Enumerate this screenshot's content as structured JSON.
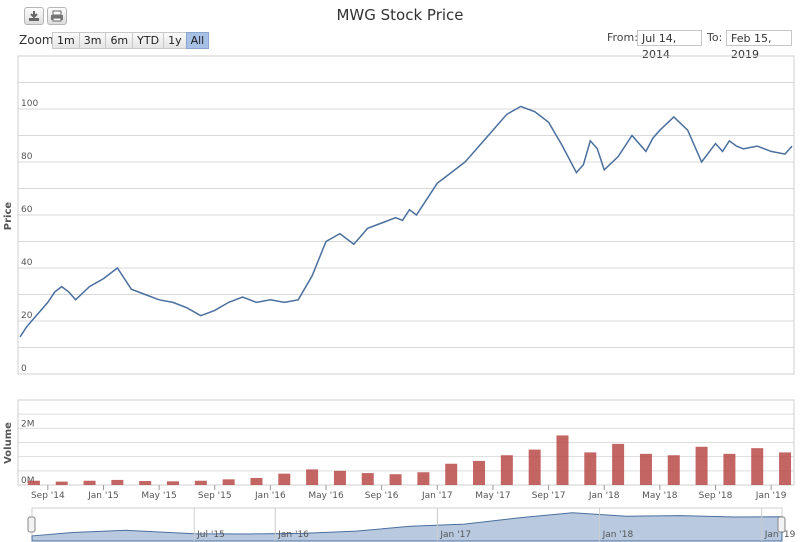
{
  "toolbar": {
    "download_icon": "download-icon",
    "print_icon": "print-icon"
  },
  "range_selector": {
    "zoom_label": "Zoom",
    "buttons": [
      "1m",
      "3m",
      "6m",
      "YTD",
      "1y",
      "All"
    ],
    "active": "All",
    "from_label": "From:",
    "from_value": "Jul 14, 2014",
    "to_label": "To:",
    "to_value": "Feb 15, 2019"
  },
  "colors": {
    "price_line": "#4a6f9e",
    "volume_bar": "#b94a48",
    "navigator_fill": "#b8c9e0",
    "active_button": "#a7c1e6"
  },
  "chart_data": [
    {
      "type": "line",
      "title": "MWG Stock Price",
      "ylabel": "Price",
      "xlabel": "",
      "ylim": [
        0,
        120
      ],
      "y_ticks": [
        "0",
        "20",
        "40",
        "60",
        "80",
        "100"
      ],
      "x_ticks": [
        "Sep '14",
        "Jan '15",
        "May '15",
        "Sep '15",
        "Jan '16",
        "May '16",
        "Sep '16",
        "Jan '17",
        "May '17",
        "Sep '17",
        "Jan '18",
        "May '18",
        "Sep '18",
        "Jan '19"
      ],
      "x_unit": "months since Jul 2014",
      "xlim": [
        0,
        55.5
      ],
      "series": [
        {
          "name": "MWG",
          "x": [
            0,
            0.5,
            1,
            1.5,
            2,
            2.5,
            3,
            3.5,
            4,
            5,
            6,
            7,
            8,
            9,
            10,
            11,
            12,
            13,
            14,
            15,
            16,
            17,
            18,
            19,
            20,
            21,
            22,
            23,
            24,
            25,
            26,
            27,
            27.5,
            28,
            28.5,
            29,
            30,
            31,
            32,
            33,
            34,
            35,
            36,
            37,
            38,
            39,
            40,
            40.5,
            41,
            41.5,
            42,
            43,
            44,
            45,
            45.5,
            46,
            47,
            48,
            49,
            50,
            50.5,
            51,
            51.5,
            52,
            53,
            54,
            55,
            55.5
          ],
          "values": [
            14,
            18,
            21,
            24,
            27,
            31,
            33,
            31,
            28,
            33,
            36,
            40,
            32,
            30,
            28,
            27,
            25,
            22,
            24,
            27,
            29,
            27,
            28,
            27,
            28,
            37,
            50,
            53,
            49,
            55,
            57,
            59,
            58,
            62,
            60,
            64,
            72,
            76,
            80,
            86,
            92,
            98,
            101,
            99,
            95,
            86,
            76,
            79,
            88,
            85,
            77,
            82,
            90,
            84,
            89,
            92,
            97,
            92,
            80,
            87,
            84,
            88,
            86,
            85,
            86,
            84,
            83,
            86
          ]
        }
      ]
    },
    {
      "type": "bar",
      "title": "",
      "ylabel": "Volume",
      "xlabel": "",
      "ylim": [
        0,
        3000000
      ],
      "y_ticks": [
        "0M",
        "2M"
      ],
      "x_ticks": [
        "Sep '14",
        "Jan '15",
        "May '15",
        "Sep '15",
        "Jan '16",
        "May '16",
        "Sep '16",
        "Jan '17",
        "May '17",
        "Sep '17",
        "Jan '18",
        "May '18",
        "Sep '18",
        "Jan '19"
      ],
      "x_unit": "months since Jul 2014",
      "xlim": [
        0,
        55.5
      ],
      "series": [
        {
          "name": "Volume",
          "x": [
            1,
            3,
            5,
            7,
            9,
            11,
            13,
            15,
            17,
            19,
            21,
            23,
            25,
            27,
            29,
            31,
            33,
            35,
            37,
            39,
            41,
            43,
            45,
            47,
            49,
            51,
            53,
            55
          ],
          "values": [
            150000,
            120000,
            150000,
            180000,
            140000,
            130000,
            150000,
            200000,
            250000,
            400000,
            550000,
            500000,
            420000,
            380000,
            450000,
            750000,
            850000,
            1050000,
            1250000,
            1750000,
            1150000,
            1450000,
            1100000,
            1050000,
            1350000,
            1100000,
            1300000,
            1150000
          ]
        }
      ]
    },
    {
      "type": "area",
      "title": "",
      "ylabel": "",
      "xlabel": "",
      "ylim": [
        0,
        110
      ],
      "x_ticks": [
        "Jul '15",
        "Jan '16",
        "Jan '17",
        "Jan '18",
        "Jan '19"
      ],
      "x_unit": "months since Jul 2014",
      "xlim": [
        0,
        55.5
      ],
      "series": [
        {
          "name": "Navigator",
          "x": [
            0,
            3,
            7,
            12,
            16,
            20,
            24,
            28,
            32,
            36,
            40,
            44,
            48,
            52,
            55.5
          ],
          "values": [
            18,
            30,
            38,
            26,
            25,
            27,
            35,
            52,
            60,
            82,
            100,
            88,
            90,
            85,
            86
          ]
        }
      ]
    }
  ]
}
